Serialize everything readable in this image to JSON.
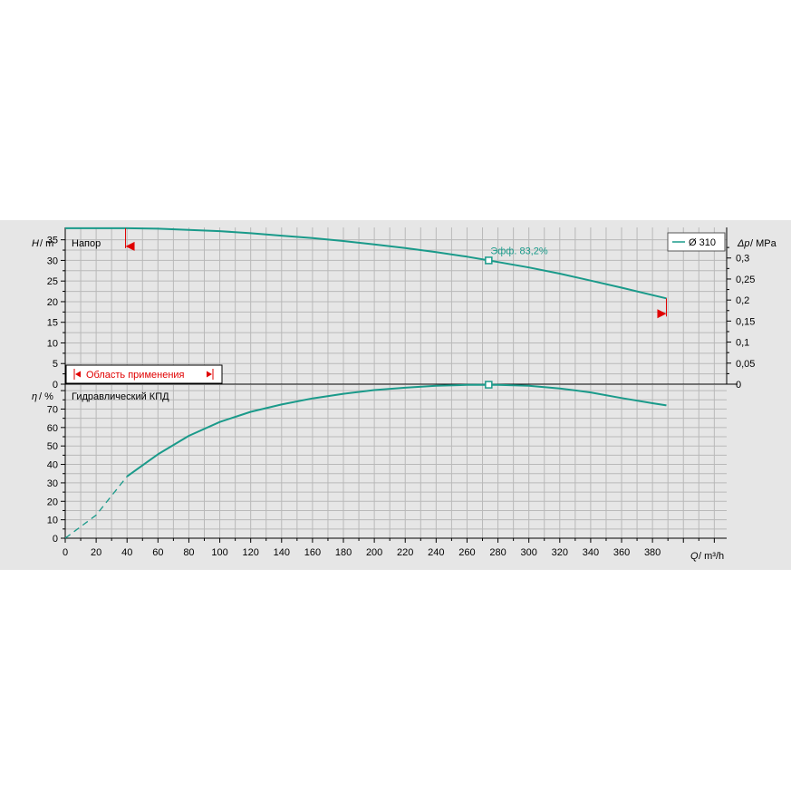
{
  "colors": {
    "background": "#e6e6e6",
    "grid": "#b9b9b9",
    "curve": "#1a9a8a",
    "range_marker": "#e00000",
    "axis": "#000000"
  },
  "chart_data": [
    {
      "id": "head",
      "type": "line",
      "title": "Напор",
      "ylabel_symbol": "H",
      "ylabel_unit": "/ m",
      "y2label_symbol": "Δp",
      "y2label_unit": "/ MPa",
      "ylim": [
        0,
        38
      ],
      "yticks": [
        0,
        5,
        10,
        15,
        20,
        25,
        30,
        35
      ],
      "y2ticks": [
        "0",
        "0,05",
        "0,1",
        "0,15",
        "0,2",
        "0,25",
        "0,3"
      ],
      "y2ticks_values": [
        0,
        0.05,
        0.1,
        0.15,
        0.2,
        0.25,
        0.3
      ],
      "y2lim": [
        0,
        0.3727
      ],
      "grid": true,
      "legend": {
        "position": "top-right",
        "entries": [
          "Ø 310"
        ]
      },
      "series": [
        {
          "name": "Ø 310",
          "x": [
            0,
            20,
            40,
            60,
            80,
            100,
            120,
            140,
            160,
            180,
            200,
            220,
            240,
            260,
            274,
            280,
            300,
            320,
            340,
            360,
            380,
            389
          ],
          "y": [
            37.8,
            37.8,
            37.8,
            37.7,
            37.4,
            37.1,
            36.6,
            36.0,
            35.4,
            34.7,
            33.9,
            33.0,
            32.0,
            30.9,
            30.0,
            29.6,
            28.3,
            26.8,
            25.1,
            23.4,
            21.6,
            20.8
          ]
        }
      ],
      "annotations": [
        {
          "text": "Эфф.  83,2%",
          "x": 274,
          "y": 30.0
        }
      ],
      "operating_range": {
        "label": "Область применения",
        "x_min": 39,
        "x_max": 389
      }
    },
    {
      "id": "efficiency",
      "type": "line",
      "title": "Гидравлический КПД",
      "ylabel_symbol": "η",
      "ylabel_unit": "/ %",
      "xlabel_symbol": "Q",
      "xlabel_unit": "/ m³/h",
      "ylim": [
        0,
        83
      ],
      "yticks": [
        0,
        10,
        20,
        30,
        40,
        50,
        60,
        70
      ],
      "xlim": [
        0,
        428
      ],
      "xticks": [
        0,
        20,
        40,
        60,
        80,
        100,
        120,
        140,
        160,
        180,
        200,
        220,
        240,
        260,
        280,
        300,
        320,
        340,
        360,
        380
      ],
      "grid": true,
      "series": [
        {
          "name": "",
          "x": [
            0,
            20,
            40,
            60,
            80,
            100,
            120,
            140,
            160,
            180,
            200,
            220,
            240,
            260,
            274,
            280,
            300,
            320,
            340,
            360,
            380,
            389
          ],
          "y": [
            0,
            12.5,
            33.5,
            45.5,
            55.5,
            63.0,
            68.5,
            72.5,
            75.8,
            78.3,
            80.3,
            81.6,
            82.6,
            83.1,
            83.2,
            83.1,
            82.6,
            81.2,
            79.0,
            76.0,
            73.2,
            72.0
          ]
        }
      ],
      "markers": [
        {
          "x": 274,
          "y": 83.2
        }
      ]
    }
  ]
}
